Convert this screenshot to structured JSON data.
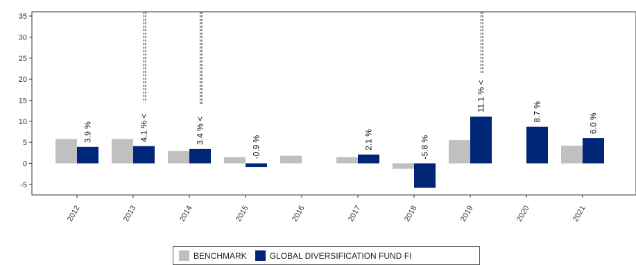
{
  "chart_data": {
    "type": "bar",
    "categories": [
      "2012",
      "2013",
      "2014",
      "2015",
      "2016",
      "2017",
      "2018",
      "2019",
      "2020",
      "2021"
    ],
    "series": [
      {
        "name": "BENCHMARK",
        "color": "#c0c0c0",
        "values": [
          5.8,
          5.8,
          2.9,
          1.5,
          1.8,
          1.5,
          -1.3,
          5.5,
          null,
          4.2
        ]
      },
      {
        "name": "GLOBAL DIVERSIFICATION FUND FI",
        "color": "#002678",
        "values": [
          3.9,
          4.1,
          3.4,
          -0.9,
          null,
          2.1,
          -5.8,
          11.1,
          8.7,
          6.0
        ]
      }
    ],
    "data_labels": [
      "3.9 %",
      "4.1 %",
      "3.4 %",
      "-0.9 %",
      "",
      "2.1 %",
      "-5.8 %",
      "11.1 %",
      "8.7 %",
      "6.0 %"
    ],
    "arrow_prefix": "<",
    "arrow_years": [
      "2013",
      "2014",
      "2019"
    ],
    "yticks": [
      -5,
      0,
      5,
      10,
      15,
      20,
      25,
      30,
      35
    ],
    "ylim": [
      -7.5,
      36
    ],
    "grid": false,
    "legend_position": "bottom"
  }
}
